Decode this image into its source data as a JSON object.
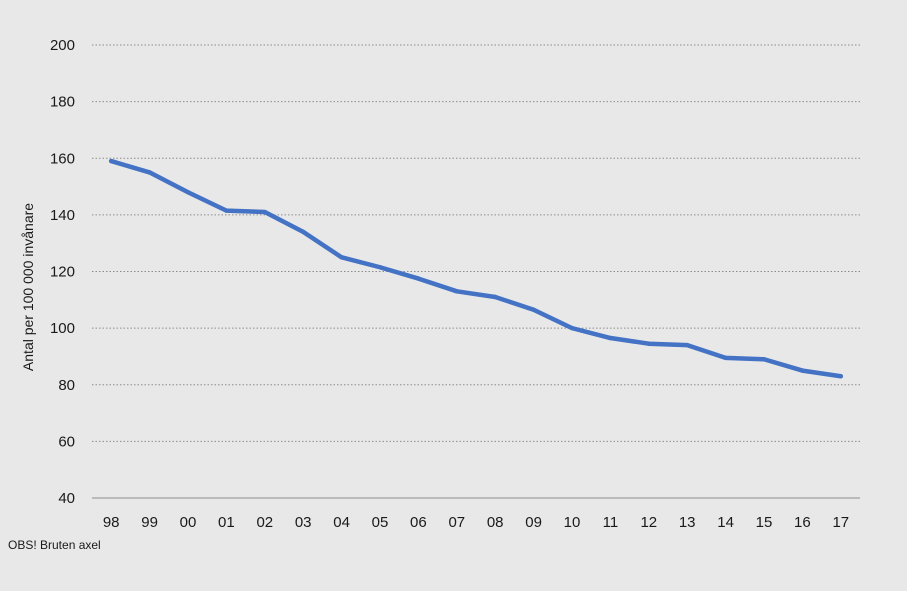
{
  "chart_data": {
    "type": "line",
    "title": "",
    "xlabel": "",
    "ylabel": "Antal per 100 000 invånare",
    "note": "OBS! Bruten axel",
    "ylim": [
      40,
      200
    ],
    "yticks": [
      40,
      60,
      80,
      100,
      120,
      140,
      160,
      180,
      200
    ],
    "categories": [
      "98",
      "99",
      "00",
      "01",
      "02",
      "03",
      "04",
      "05",
      "06",
      "07",
      "08",
      "09",
      "10",
      "11",
      "12",
      "13",
      "14",
      "15",
      "16",
      "17"
    ],
    "grid": true,
    "series": [
      {
        "color": "#4472c4",
        "values": [
          159,
          155,
          148,
          141.5,
          141,
          134,
          125,
          121.5,
          117.5,
          113,
          111,
          106.5,
          100,
          96.5,
          94.5,
          94,
          89.5,
          89,
          85,
          83
        ]
      }
    ]
  }
}
